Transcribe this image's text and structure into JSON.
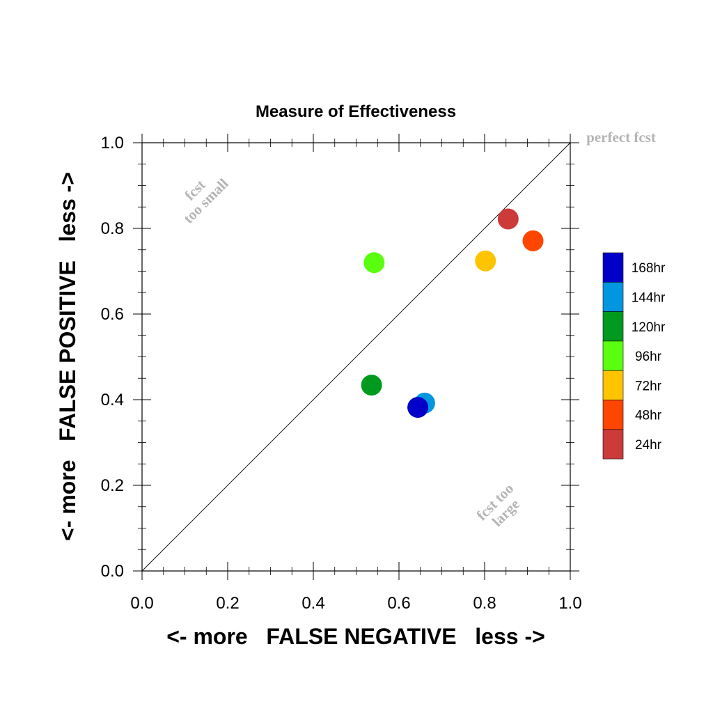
{
  "chart_data": {
    "type": "scatter",
    "title": "Measure of Effectiveness",
    "xlabel": "<- more   FALSE NEGATIVE   less ->",
    "ylabel": "<- more   FALSE POSITIVE   less ->",
    "xlim": [
      0,
      1
    ],
    "ylim": [
      0,
      1
    ],
    "xticks": [
      "0.0",
      "0.2",
      "0.4",
      "0.6",
      "0.8",
      "1.0"
    ],
    "yticks": [
      "0.0",
      "0.2",
      "0.4",
      "0.6",
      "0.8",
      "1.0"
    ],
    "grid": false,
    "diagonal_line": true,
    "annotations": {
      "top_left": [
        "fcst",
        "too small"
      ],
      "bottom_right": [
        "fcst too",
        "large"
      ],
      "top_right": "perfect fcst"
    },
    "legend_placement": "right",
    "series": [
      {
        "name": "168hr",
        "color": "#0000c8",
        "x": [
          0.644
        ],
        "y": [
          0.382
        ]
      },
      {
        "name": "144hr",
        "color": "#0096e0",
        "x": [
          0.66
        ],
        "y": [
          0.392
        ]
      },
      {
        "name": "120hr",
        "color": "#009a1e",
        "x": [
          0.536
        ],
        "y": [
          0.434
        ]
      },
      {
        "name": "96hr",
        "color": "#5aff10",
        "x": [
          0.542
        ],
        "y": [
          0.72
        ]
      },
      {
        "name": "72hr",
        "color": "#ffc400",
        "x": [
          0.802
        ],
        "y": [
          0.724
        ]
      },
      {
        "name": "48hr",
        "color": "#ff4600",
        "x": [
          0.913
        ],
        "y": [
          0.771
        ]
      },
      {
        "name": "24hr",
        "color": "#cc3a3a",
        "x": [
          0.855
        ],
        "y": [
          0.822
        ]
      }
    ]
  }
}
